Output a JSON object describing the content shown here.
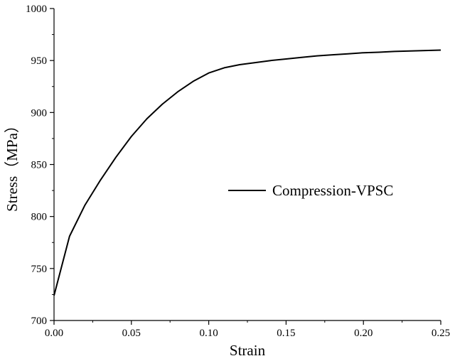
{
  "chart_data": {
    "type": "line",
    "title": "",
    "xlabel": "Strain",
    "ylabel": "Stress（MPa）",
    "xlim": [
      0.0,
      0.25
    ],
    "ylim": [
      700,
      1000
    ],
    "x_ticks": [
      0.0,
      0.05,
      0.1,
      0.15,
      0.2,
      0.25
    ],
    "x_tick_labels": [
      "0.00",
      "0.05",
      "0.10",
      "0.15",
      "0.20",
      "0.25"
    ],
    "y_ticks": [
      700,
      750,
      800,
      850,
      900,
      950,
      1000
    ],
    "y_tick_labels": [
      "700",
      "750",
      "800",
      "850",
      "900",
      "950",
      "1000"
    ],
    "grid": false,
    "legend_position": "center-right",
    "series": [
      {
        "name": "Compression-VPSC",
        "color": "#000000",
        "x": [
          0.0,
          0.01,
          0.02,
          0.03,
          0.04,
          0.05,
          0.06,
          0.07,
          0.08,
          0.09,
          0.1,
          0.11,
          0.12,
          0.13,
          0.14,
          0.15,
          0.16,
          0.17,
          0.18,
          0.19,
          0.2,
          0.21,
          0.22,
          0.23,
          0.24,
          0.25
        ],
        "y": [
          724,
          781,
          811,
          835,
          857,
          877,
          894,
          908,
          920,
          930,
          938,
          943,
          946,
          948,
          950,
          951.5,
          953,
          954.5,
          955.5,
          956.5,
          957.5,
          958,
          958.7,
          959.2,
          959.6,
          960
        ]
      }
    ]
  }
}
